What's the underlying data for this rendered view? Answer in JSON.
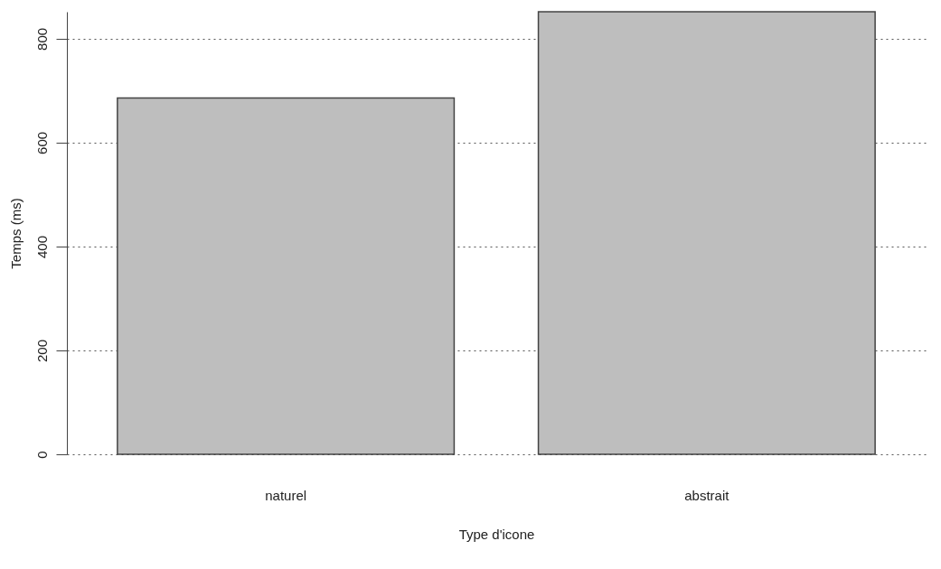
{
  "chart_data": {
    "type": "bar",
    "xlabel": "Type d'icone",
    "ylabel": "Temps (ms)",
    "categories": [
      "naturel",
      "abstrait"
    ],
    "values": [
      686,
      852
    ],
    "color": "#bebebe",
    "ylim": [
      0,
      852
    ],
    "yticks": [
      0,
      200,
      400,
      600,
      800
    ],
    "grid": "y"
  }
}
